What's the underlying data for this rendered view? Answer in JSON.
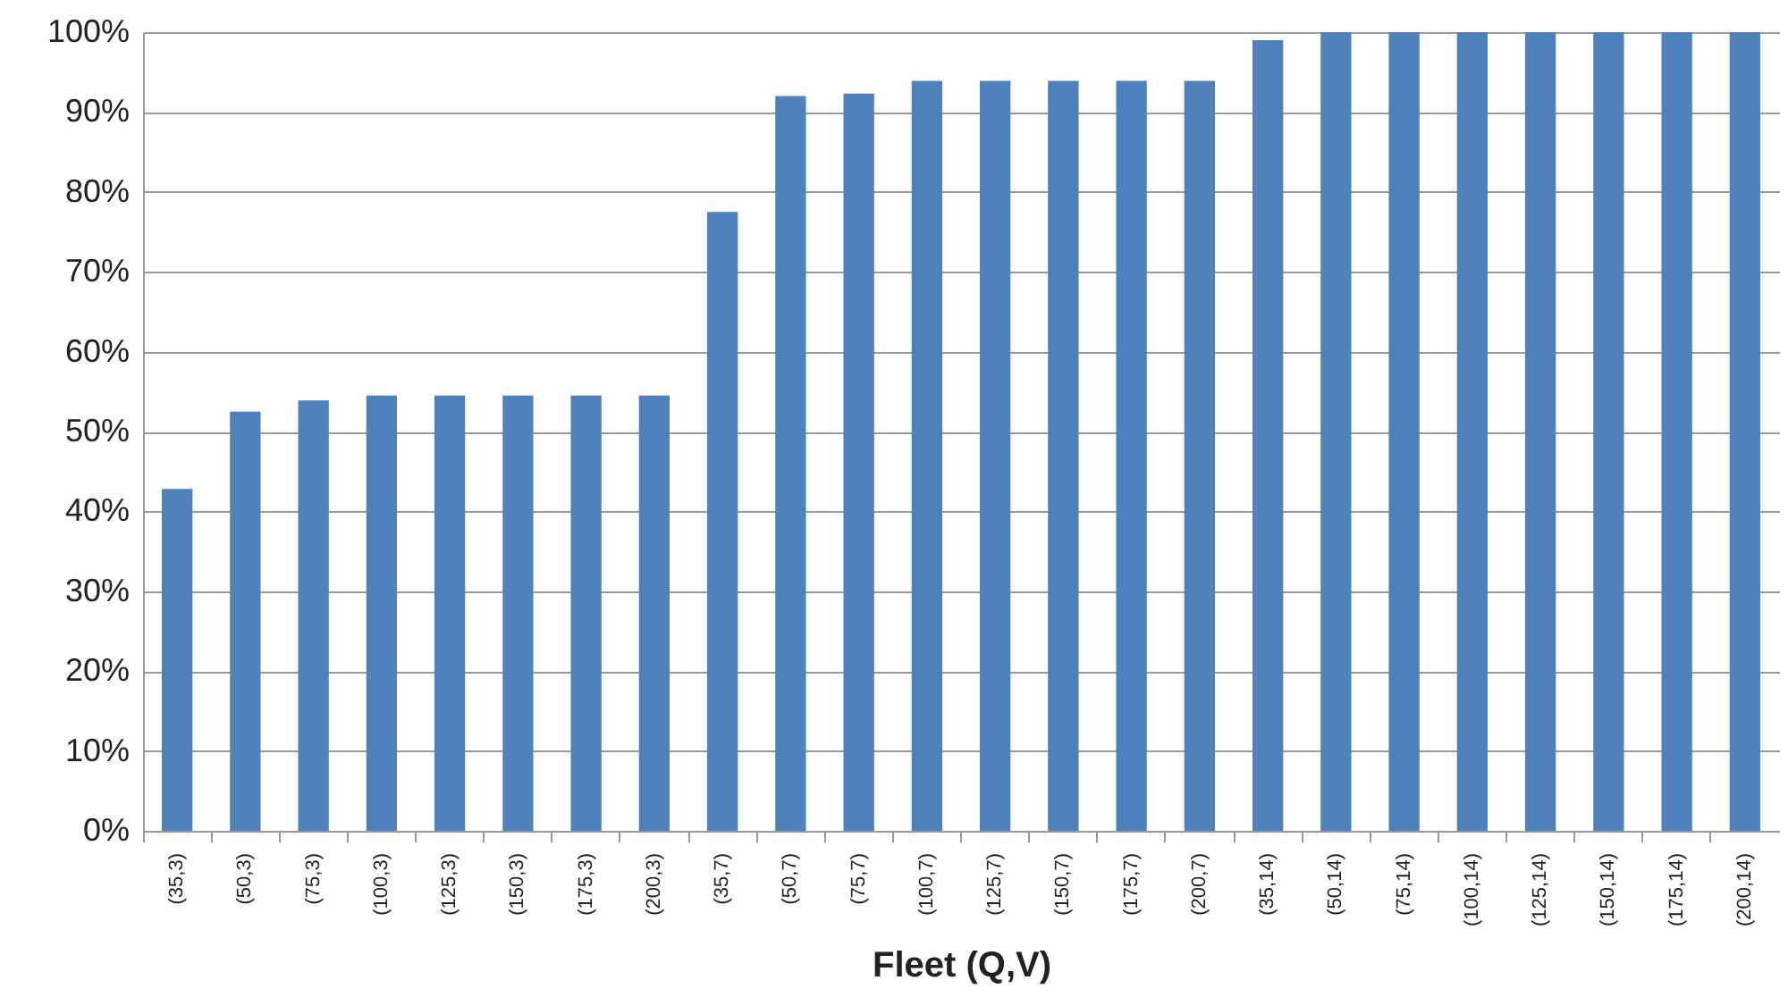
{
  "chart_data": {
    "type": "bar",
    "xlabel": "Fleet (Q,V)",
    "categories": [
      "(35,3)",
      "(50,3)",
      "(75,3)",
      "(100,3)",
      "(125,3)",
      "(150,3)",
      "(175,3)",
      "(200,3)",
      "(35,7)",
      "(50,7)",
      "(75,7)",
      "(100,7)",
      "(125,7)",
      "(150,7)",
      "(175,7)",
      "(200,7)",
      "(35,14)",
      "(50,14)",
      "(75,14)",
      "(100,14)",
      "(125,14)",
      "(150,14)",
      "(175,14)",
      "(200,14)"
    ],
    "values": [
      42.8,
      52.5,
      53.9,
      54.5,
      54.5,
      54.5,
      54.5,
      54.5,
      77.5,
      92.0,
      92.3,
      93.9,
      93.9,
      93.9,
      93.9,
      93.9,
      99.0,
      100,
      100,
      100,
      100,
      100,
      100,
      100
    ],
    "color": "#4f81bd",
    "ylim": [
      0,
      100
    ],
    "yticks": [
      {
        "value": 0,
        "label": "0%"
      },
      {
        "value": 10,
        "label": "10%"
      },
      {
        "value": 20,
        "label": "20%"
      },
      {
        "value": 30,
        "label": "30%"
      },
      {
        "value": 40,
        "label": "40%"
      },
      {
        "value": 50,
        "label": "50%"
      },
      {
        "value": 60,
        "label": "60%"
      },
      {
        "value": 70,
        "label": "70%"
      },
      {
        "value": 80,
        "label": "80%"
      },
      {
        "value": 90,
        "label": "90%"
      },
      {
        "value": 100,
        "label": "100%"
      }
    ],
    "grid": "y"
  }
}
